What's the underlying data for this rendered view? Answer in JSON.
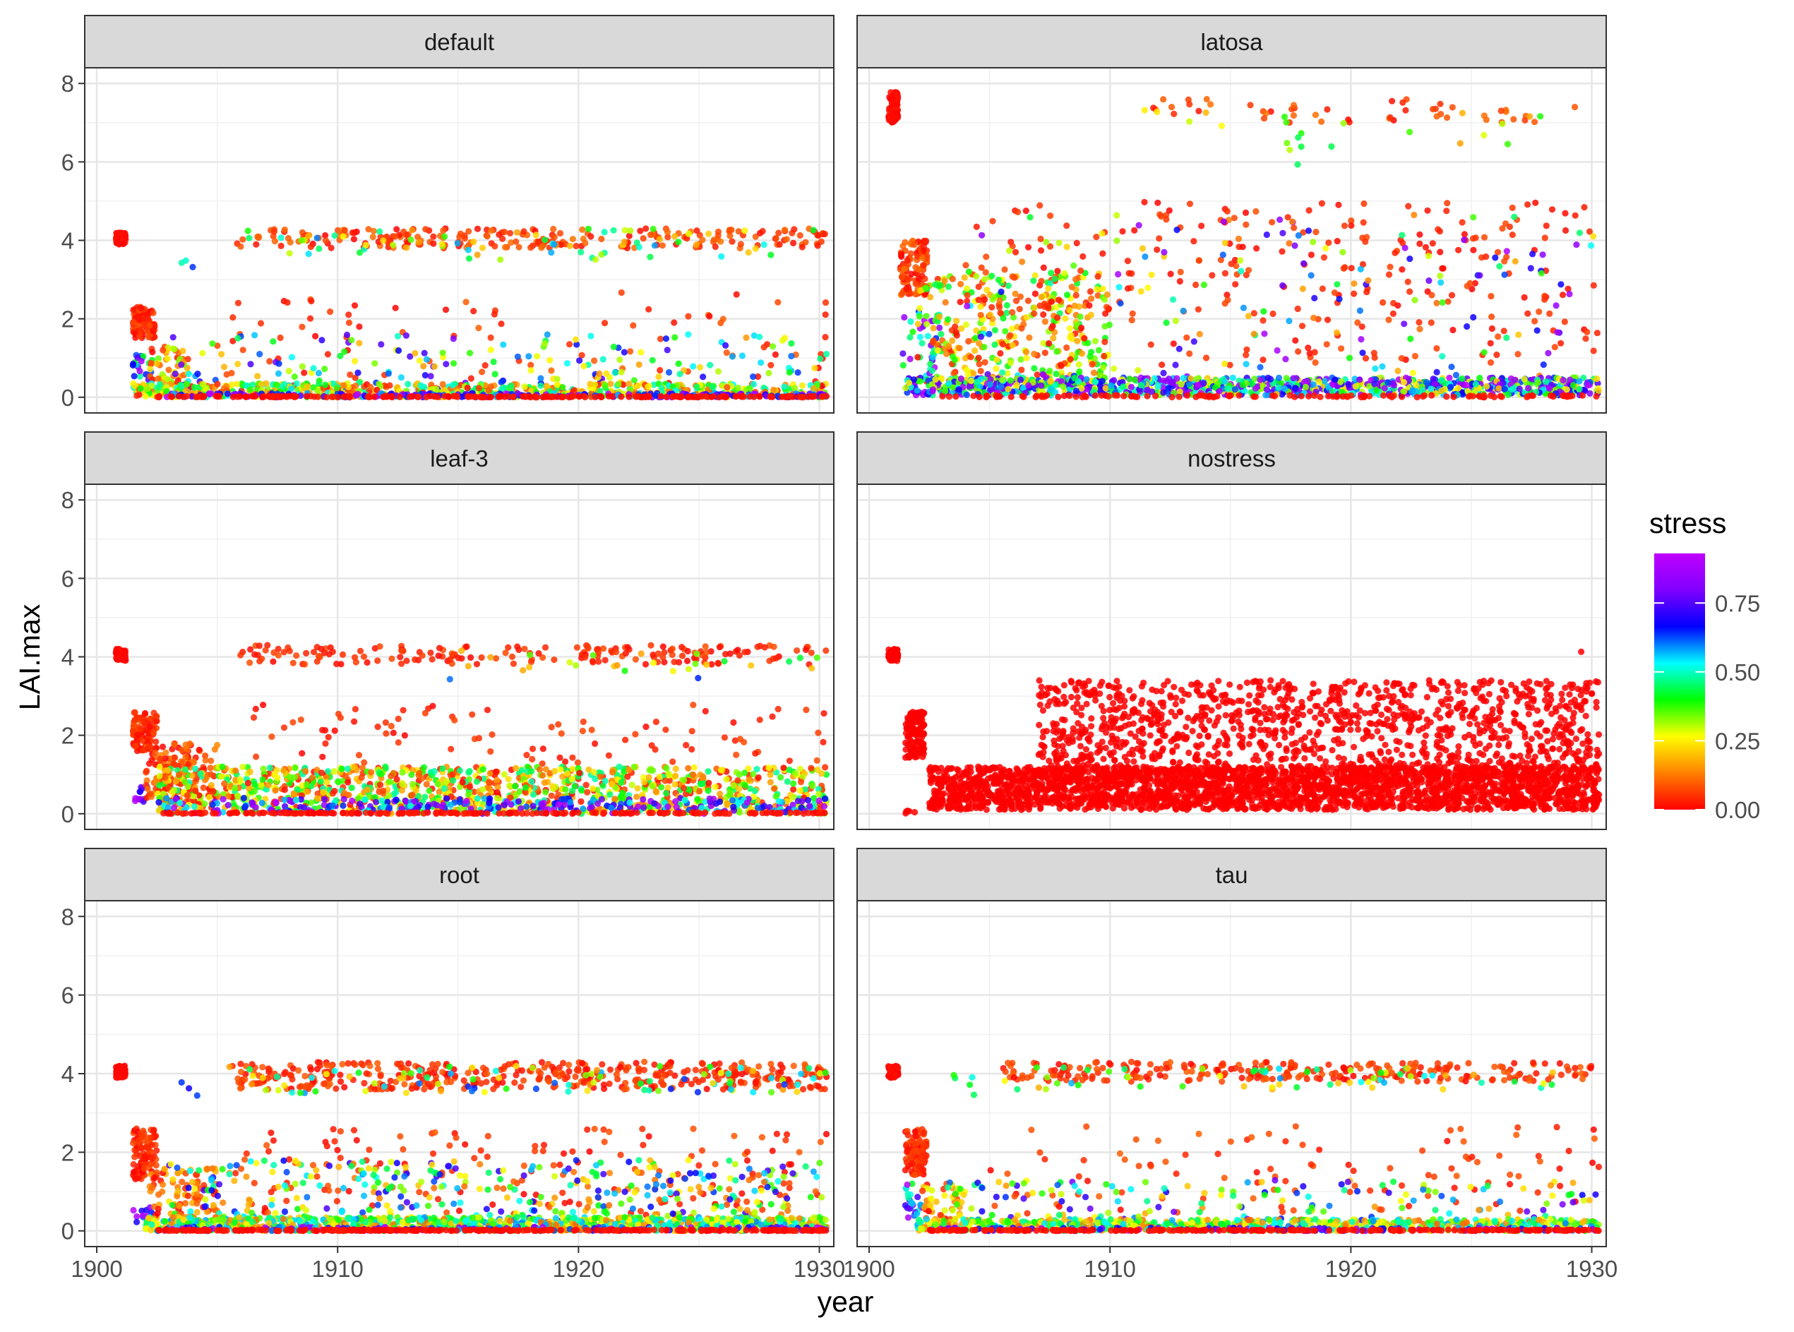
{
  "chart_data": {
    "type": "scatter",
    "facets": [
      "default",
      "latosa",
      "leaf-3",
      "nostress",
      "root",
      "tau"
    ],
    "xlabel": "year",
    "ylabel": "LAI.max",
    "xlim": [
      1899.5,
      1930.6
    ],
    "ylim": [
      -0.4,
      8.4
    ],
    "x_ticks": [
      1900,
      1910,
      1920,
      1930
    ],
    "y_ticks": [
      0,
      2,
      4,
      6,
      8
    ],
    "grid": true,
    "legend": {
      "title": "stress",
      "type": "colorbar",
      "position": "right",
      "range": [
        0,
        0.93
      ],
      "ticks": [
        0.0,
        0.25,
        0.5,
        0.75
      ],
      "tick_labels": [
        "0.00",
        "0.25",
        "0.50",
        "0.75"
      ],
      "colors": [
        "#ff0000",
        "#ff8000",
        "#ffff00",
        "#00ff00",
        "#00ffff",
        "#0000ff",
        "#8000ff",
        "#c000ff"
      ]
    },
    "series": [
      {
        "facet": "default",
        "clusters": [
          {
            "x": [
              1900.8,
              1901.2
            ],
            "y": [
              3.9,
              4.2
            ],
            "stress": [
              0.0,
              0.02
            ],
            "n": 80
          },
          {
            "x": [
              1901.5,
              1902.4
            ],
            "y": [
              1.5,
              2.3
            ],
            "stress": [
              0.0,
              0.08
            ],
            "n": 100
          },
          {
            "x": [
              1901.5,
              1902.3
            ],
            "y": [
              0.2,
              1.2
            ],
            "stress": [
              0.4,
              0.9
            ],
            "n": 25
          },
          {
            "x": [
              1902.2,
              1903.8
            ],
            "y": [
              0.0,
              1.3
            ],
            "stress": [
              0.0,
              0.35
            ],
            "n": 60
          },
          {
            "x": [
              1905.5,
              1930.3
            ],
            "y": [
              3.8,
              4.3
            ],
            "stress": [
              0.0,
              0.12
            ],
            "n": 230
          },
          {
            "x": [
              1905.5,
              1930.3
            ],
            "y": [
              3.5,
              4.3
            ],
            "stress": [
              0.15,
              0.6
            ],
            "n": 70
          },
          {
            "x": [
              1903.5,
              1904.5
            ],
            "y": [
              3.3,
              3.5
            ],
            "stress": [
              0.45,
              0.7
            ],
            "n": 3
          },
          {
            "x": [
              1905.0,
              1930.3
            ],
            "y": [
              0.2,
              2.7
            ],
            "stress": [
              0.0,
              0.1
            ],
            "n": 90
          },
          {
            "x": [
              1903.0,
              1930.3
            ],
            "y": [
              0.2,
              1.6
            ],
            "stress": [
              0.15,
              0.8
            ],
            "n": 170
          },
          {
            "x": [
              1901.5,
              1930.3
            ],
            "y": [
              0.0,
              0.35
            ],
            "stress": [
              0.0,
              0.55
            ],
            "n": 600
          },
          {
            "x": [
              1902.5,
              1930.3
            ],
            "y": [
              0.0,
              0.1
            ],
            "stress": [
              0.55,
              0.93
            ],
            "n": 220
          },
          {
            "x": [
              1902.5,
              1930.3
            ],
            "y": [
              0.0,
              0.03
            ],
            "stress": [
              0.0,
              0.03
            ],
            "n": 220
          }
        ]
      },
      {
        "facet": "latosa",
        "clusters": [
          {
            "x": [
              1900.8,
              1901.2
            ],
            "y": [
              7.0,
              7.8
            ],
            "stress": [
              0.0,
              0.02
            ],
            "n": 80
          },
          {
            "x": [
              1901.3,
              1902.4
            ],
            "y": [
              2.6,
              4.0
            ],
            "stress": [
              0.0,
              0.12
            ],
            "n": 100
          },
          {
            "x": [
              1901.3,
              1903.0
            ],
            "y": [
              0.3,
              2.2
            ],
            "stress": [
              0.35,
              0.93
            ],
            "n": 40
          },
          {
            "x": [
              1902.0,
              1910.0
            ],
            "y": [
              0.3,
              3.2
            ],
            "stress": [
              0.0,
              0.45
            ],
            "n": 320
          },
          {
            "x": [
              1911.0,
              1930.2
            ],
            "y": [
              7.0,
              7.6
            ],
            "stress": [
              0.0,
              0.12
            ],
            "n": 50
          },
          {
            "x": [
              1911.0,
              1930.0
            ],
            "y": [
              6.3,
              7.5
            ],
            "stress": [
              0.15,
              0.45
            ],
            "n": 15
          },
          {
            "x": [
              1917.0,
              1918.0
            ],
            "y": [
              5.8,
              7.2
            ],
            "stress": [
              0.3,
              0.45
            ],
            "n": 8
          },
          {
            "x": [
              1904.0,
              1930.3
            ],
            "y": [
              0.8,
              5.0
            ],
            "stress": [
              0.0,
              0.08
            ],
            "n": 300
          },
          {
            "x": [
              1904.0,
              1930.3
            ],
            "y": [
              0.3,
              4.7
            ],
            "stress": [
              0.1,
              0.9
            ],
            "n": 180
          },
          {
            "x": [
              1901.5,
              1930.3
            ],
            "y": [
              0.05,
              0.5
            ],
            "stress": [
              0.2,
              0.93
            ],
            "n": 1100
          },
          {
            "x": [
              1903.0,
              1930.3
            ],
            "y": [
              0.0,
              0.05
            ],
            "stress": [
              0.0,
              0.03
            ],
            "n": 120
          }
        ]
      },
      {
        "facet": "leaf-3",
        "clusters": [
          {
            "x": [
              1900.8,
              1901.2
            ],
            "y": [
              3.9,
              4.2
            ],
            "stress": [
              0.0,
              0.02
            ],
            "n": 80
          },
          {
            "x": [
              1901.5,
              1902.5
            ],
            "y": [
              1.6,
              2.6
            ],
            "stress": [
              0.0,
              0.08
            ],
            "n": 100
          },
          {
            "x": [
              1901.5,
              1902.1
            ],
            "y": [
              0.3,
              0.7
            ],
            "stress": [
              0.6,
              0.93
            ],
            "n": 12
          },
          {
            "x": [
              1902.0,
              1905.0
            ],
            "y": [
              0.3,
              1.8
            ],
            "stress": [
              0.0,
              0.15
            ],
            "n": 140
          },
          {
            "x": [
              1905.5,
              1930.3
            ],
            "y": [
              3.8,
              4.3
            ],
            "stress": [
              0.0,
              0.08
            ],
            "n": 180
          },
          {
            "x": [
              1914.5,
              1930.3
            ],
            "y": [
              3.6,
              4.2
            ],
            "stress": [
              0.15,
              0.45
            ],
            "n": 25
          },
          {
            "x": [
              1903.5,
              1926.5
            ],
            "y": [
              3.4,
              3.5
            ],
            "stress": [
              0.6,
              0.75
            ],
            "n": 2
          },
          {
            "x": [
              1906.0,
              1930.3
            ],
            "y": [
              0.5,
              2.8
            ],
            "stress": [
              0.0,
              0.08
            ],
            "n": 140
          },
          {
            "x": [
              1902.5,
              1930.3
            ],
            "y": [
              0.0,
              1.2
            ],
            "stress": [
              0.0,
              0.5
            ],
            "n": 1100
          },
          {
            "x": [
              1902.5,
              1930.3
            ],
            "y": [
              0.0,
              0.4
            ],
            "stress": [
              0.5,
              0.93
            ],
            "n": 280
          },
          {
            "x": [
              1902.5,
              1930.3
            ],
            "y": [
              0.0,
              0.03
            ],
            "stress": [
              0.0,
              0.03
            ],
            "n": 200
          }
        ]
      },
      {
        "facet": "nostress",
        "clusters": [
          {
            "x": [
              1900.8,
              1901.2
            ],
            "y": [
              3.9,
              4.2
            ],
            "stress": [
              0.0,
              0.0
            ],
            "n": 80
          },
          {
            "x": [
              1901.5,
              1902.3
            ],
            "y": [
              1.4,
              2.6
            ],
            "stress": [
              0.0,
              0.0
            ],
            "n": 120
          },
          {
            "x": [
              1901.5,
              1902.0
            ],
            "y": [
              0.0,
              0.1
            ],
            "stress": [
              0.0,
              0.0
            ],
            "n": 5
          },
          {
            "x": [
              1902.5,
              1930.3
            ],
            "y": [
              0.1,
              1.2
            ],
            "stress": [
              0.0,
              0.0
            ],
            "n": 2600
          },
          {
            "x": [
              1907.0,
              1930.3
            ],
            "y": [
              0.8,
              3.4
            ],
            "stress": [
              0.0,
              0.0
            ],
            "n": 1300
          },
          {
            "x": [
              1929.5,
              1929.8
            ],
            "y": [
              4.1,
              4.2
            ],
            "stress": [
              0.0,
              0.0
            ],
            "n": 1
          }
        ]
      },
      {
        "facet": "root",
        "clusters": [
          {
            "x": [
              1900.8,
              1901.2
            ],
            "y": [
              3.9,
              4.2
            ],
            "stress": [
              0.0,
              0.02
            ],
            "n": 80
          },
          {
            "x": [
              1901.5,
              1902.5
            ],
            "y": [
              1.3,
              2.6
            ],
            "stress": [
              0.0,
              0.08
            ],
            "n": 100
          },
          {
            "x": [
              1901.5,
              1902.3
            ],
            "y": [
              0.2,
              0.6
            ],
            "stress": [
              0.5,
              0.93
            ],
            "n": 15
          },
          {
            "x": [
              1902.2,
              1905.0
            ],
            "y": [
              0.1,
              1.6
            ],
            "stress": [
              0.0,
              0.2
            ],
            "n": 90
          },
          {
            "x": [
              1905.5,
              1930.3
            ],
            "y": [
              3.6,
              4.3
            ],
            "stress": [
              0.0,
              0.1
            ],
            "n": 420
          },
          {
            "x": [
              1905.5,
              1930.3
            ],
            "y": [
              3.5,
              4.2
            ],
            "stress": [
              0.15,
              0.65
            ],
            "n": 90
          },
          {
            "x": [
              1903.5,
              1904.5
            ],
            "y": [
              3.4,
              3.8
            ],
            "stress": [
              0.4,
              0.7
            ],
            "n": 3
          },
          {
            "x": [
              1905.5,
              1930.3
            ],
            "y": [
              0.4,
              2.6
            ],
            "stress": [
              0.0,
              0.1
            ],
            "n": 170
          },
          {
            "x": [
              1903.0,
              1930.3
            ],
            "y": [
              0.2,
              1.8
            ],
            "stress": [
              0.1,
              0.75
            ],
            "n": 360
          },
          {
            "x": [
              1902.0,
              1930.3
            ],
            "y": [
              0.0,
              0.35
            ],
            "stress": [
              0.1,
              0.6
            ],
            "n": 1000
          },
          {
            "x": [
              1902.5,
              1930.3
            ],
            "y": [
              0.0,
              0.1
            ],
            "stress": [
              0.55,
              0.93
            ],
            "n": 150
          },
          {
            "x": [
              1902.5,
              1930.3
            ],
            "y": [
              0.0,
              0.03
            ],
            "stress": [
              0.0,
              0.03
            ],
            "n": 300
          }
        ]
      },
      {
        "facet": "tau",
        "clusters": [
          {
            "x": [
              1900.8,
              1901.2
            ],
            "y": [
              3.9,
              4.2
            ],
            "stress": [
              0.0,
              0.02
            ],
            "n": 80
          },
          {
            "x": [
              1901.5,
              1902.4
            ],
            "y": [
              1.4,
              2.6
            ],
            "stress": [
              0.0,
              0.08
            ],
            "n": 100
          },
          {
            "x": [
              1901.5,
              1902.2
            ],
            "y": [
              0.3,
              1.2
            ],
            "stress": [
              0.4,
              0.93
            ],
            "n": 25
          },
          {
            "x": [
              1902.2,
              1904.0
            ],
            "y": [
              0.1,
              1.3
            ],
            "stress": [
              0.0,
              0.3
            ],
            "n": 50
          },
          {
            "x": [
              1905.5,
              1930.3
            ],
            "y": [
              3.8,
              4.3
            ],
            "stress": [
              0.0,
              0.1
            ],
            "n": 260
          },
          {
            "x": [
              1905.5,
              1930.3
            ],
            "y": [
              3.6,
              4.2
            ],
            "stress": [
              0.15,
              0.6
            ],
            "n": 60
          },
          {
            "x": [
              1903.5,
              1904.5
            ],
            "y": [
              3.4,
              4.0
            ],
            "stress": [
              0.35,
              0.65
            ],
            "n": 5
          },
          {
            "x": [
              1905.0,
              1930.3
            ],
            "y": [
              0.3,
              2.7
            ],
            "stress": [
              0.0,
              0.1
            ],
            "n": 110
          },
          {
            "x": [
              1903.0,
              1930.3
            ],
            "y": [
              0.2,
              1.3
            ],
            "stress": [
              0.15,
              0.8
            ],
            "n": 150
          },
          {
            "x": [
              1902.0,
              1930.3
            ],
            "y": [
              0.0,
              0.3
            ],
            "stress": [
              0.1,
              0.6
            ],
            "n": 700
          },
          {
            "x": [
              1902.5,
              1930.3
            ],
            "y": [
              0.0,
              0.08
            ],
            "stress": [
              0.55,
              0.93
            ],
            "n": 130
          },
          {
            "x": [
              1902.5,
              1930.3
            ],
            "y": [
              0.0,
              0.03
            ],
            "stress": [
              0.0,
              0.03
            ],
            "n": 250
          }
        ]
      }
    ]
  }
}
